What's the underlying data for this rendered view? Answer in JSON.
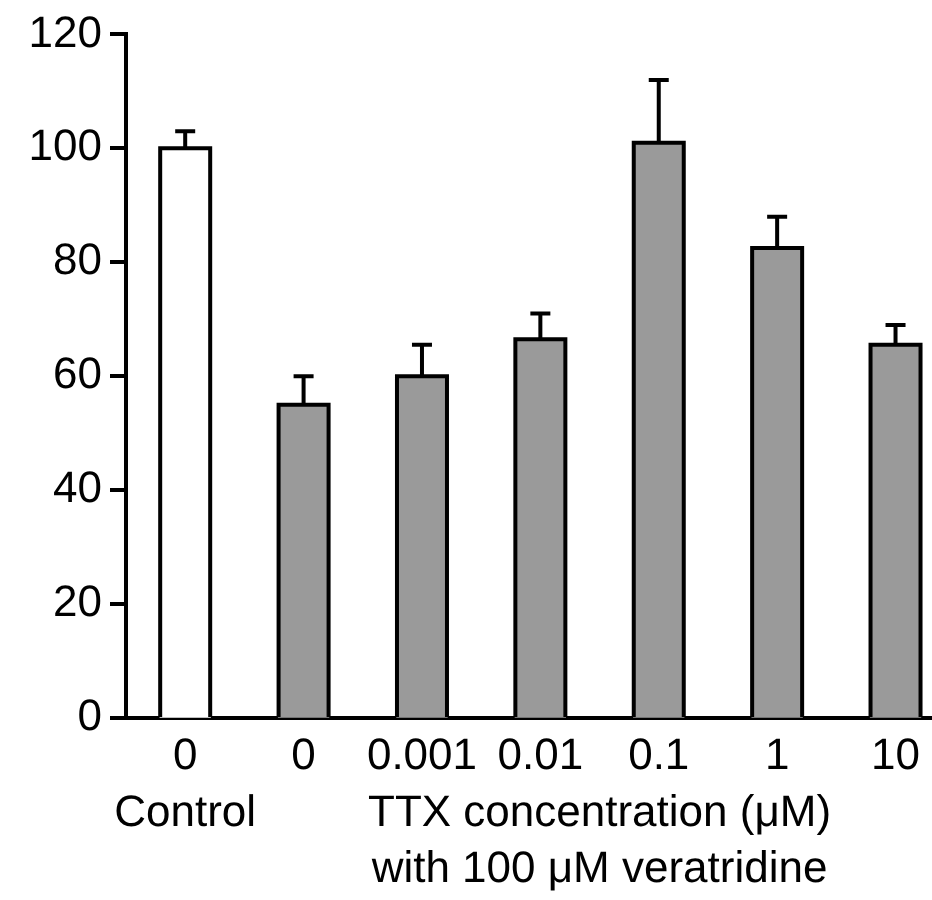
{
  "chart_data": {
    "type": "bar",
    "categories": [
      "0",
      "0",
      "0.001",
      "0.01",
      "0.1",
      "1",
      "10"
    ],
    "values": [
      100,
      55,
      60,
      66.5,
      101,
      82.5,
      65.5
    ],
    "errors": [
      [
        100,
        103
      ],
      [
        55,
        60
      ],
      [
        60,
        65.5
      ],
      [
        66.5,
        71
      ],
      [
        101,
        112
      ],
      [
        82.5,
        88
      ],
      [
        65.5,
        69
      ]
    ],
    "colors": [
      "#ffffff",
      "#9a9a9a",
      "#9a9a9a",
      "#9a9a9a",
      "#9a9a9a",
      "#9a9a9a",
      "#9a9a9a"
    ],
    "xlabel": "TTX concentration (μM)\nwith 100 μM veratridine",
    "annotations": [
      "Control"
    ],
    "ylim": [
      0,
      120
    ],
    "yticks": [
      0,
      20,
      40,
      60,
      80,
      100,
      120
    ],
    "grid": false,
    "legend": false
  }
}
